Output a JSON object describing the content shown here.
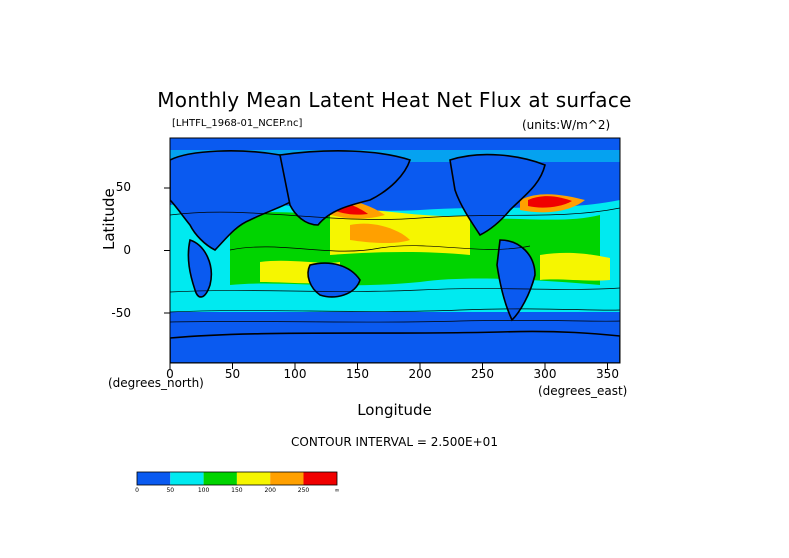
{
  "title": "Monthly Mean Latent Heat Net Flux at surface",
  "dataset_label": "[LHTFL_1968-01_NCEP.nc]",
  "units_label": "(units:W/m^2)",
  "xlabel": "Longitude",
  "ylabel": "Latitude",
  "x_unit_note": "(degrees_east)",
  "y_unit_note": "(degrees_north)",
  "contour_interval": "CONTOUR INTERVAL = 2.500E+01",
  "x_ticks": [
    "0",
    "50",
    "100",
    "150",
    "200",
    "250",
    "300",
    "350"
  ],
  "y_ticks": [
    "50",
    "0",
    "-50"
  ],
  "colorbar": {
    "labels": [
      "0",
      "50",
      "100",
      "150",
      "200",
      "250",
      "∞"
    ],
    "colors": [
      "#0a5af0",
      "#00eaf0",
      "#00d400",
      "#f6f600",
      "#ffa000",
      "#f00000"
    ]
  },
  "chart_data": {
    "type": "heatmap",
    "title": "Monthly Mean Latent Heat Net Flux at surface",
    "xlabel": "Longitude",
    "ylabel": "Latitude",
    "xlim": [
      0,
      360
    ],
    "ylim": [
      -90,
      90
    ],
    "x_ticks": [
      0,
      50,
      100,
      150,
      200,
      250,
      300,
      350
    ],
    "y_ticks": [
      50,
      0,
      -50
    ],
    "color_levels": [
      0,
      50,
      100,
      150,
      200,
      250
    ],
    "contour_interval": 25
  }
}
